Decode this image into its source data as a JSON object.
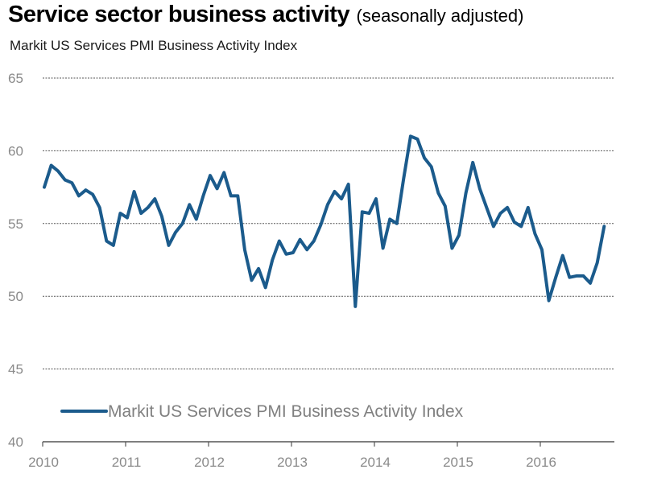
{
  "chart_data": {
    "type": "line",
    "title": "Service sector business activity",
    "title_note": "(seasonally adjusted)",
    "subtitle": "Markit US Services PMI Business Activity Index",
    "xlabel": "",
    "ylabel": "",
    "ylim": [
      40,
      65
    ],
    "yticks": [
      "65",
      "60",
      "55",
      "50",
      "45",
      "40"
    ],
    "ytick_values": [
      65,
      60,
      55,
      50,
      45,
      40
    ],
    "xticks": [
      "2010",
      "2011",
      "2012",
      "2013",
      "2014",
      "2015",
      "2016"
    ],
    "grid": "horizontal-dashed",
    "legend_position": "bottom-left",
    "x_start": "2010-01",
    "x_frequency": "monthly",
    "series": [
      {
        "name": "Markit US Services PMI Business Activity Index",
        "color": "#1b5b8c",
        "values": [
          57.5,
          59.0,
          58.6,
          58.0,
          57.8,
          56.9,
          57.3,
          57.0,
          56.1,
          53.8,
          53.5,
          55.7,
          55.4,
          57.2,
          55.7,
          56.1,
          56.7,
          55.5,
          53.5,
          54.4,
          55.0,
          56.3,
          55.3,
          56.9,
          58.3,
          57.4,
          58.5,
          56.9,
          56.9,
          53.2,
          51.1,
          51.9,
          50.6,
          52.5,
          53.8,
          52.9,
          53.0,
          53.9,
          53.2,
          53.8,
          54.9,
          56.3,
          57.2,
          56.7,
          57.7,
          49.3,
          55.8,
          55.7,
          56.7,
          53.3,
          55.3,
          55.0,
          58.1,
          61.0,
          60.8,
          59.5,
          58.9,
          57.1,
          56.2,
          53.3,
          54.2,
          57.1,
          59.2,
          57.4,
          56.1,
          54.8,
          55.7,
          56.1,
          55.1,
          54.8,
          56.1,
          54.3,
          53.2,
          49.7,
          51.3,
          52.8,
          51.3,
          51.4,
          51.4,
          50.9,
          52.3,
          54.8
        ]
      }
    ]
  }
}
